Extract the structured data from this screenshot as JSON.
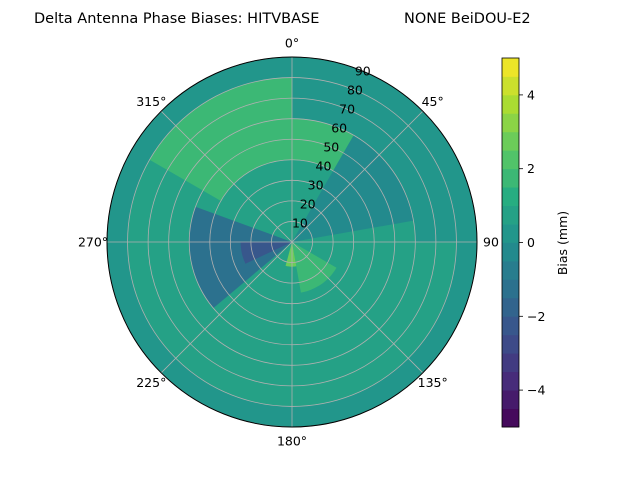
{
  "chart_data": {
    "type": "polar_contour",
    "title_left": "Delta Antenna Phase Biases: HITVBASE",
    "title_right": "NONE BeiDOU-E2",
    "theta_direction": "clockwise",
    "theta_zero": "N",
    "angle_ticks": [
      {
        "deg": 0,
        "label": "0°"
      },
      {
        "deg": 45,
        "label": "45°"
      },
      {
        "deg": 90,
        "label": "90"
      },
      {
        "deg": 135,
        "label": "135°"
      },
      {
        "deg": 180,
        "label": "180°"
      },
      {
        "deg": 225,
        "label": "225°"
      },
      {
        "deg": 270,
        "label": "270°"
      },
      {
        "deg": 315,
        "label": "315°"
      }
    ],
    "radial_ticks": [
      {
        "value": 10,
        "label": "10"
      },
      {
        "value": 20,
        "label": "20"
      },
      {
        "value": 30,
        "label": "30"
      },
      {
        "value": 40,
        "label": "40"
      },
      {
        "value": 50,
        "label": "50"
      },
      {
        "value": 60,
        "label": "60"
      },
      {
        "value": 70,
        "label": "70"
      },
      {
        "value": 80,
        "label": "80"
      },
      {
        "value": 90,
        "label": "90"
      }
    ],
    "rlim": [
      0,
      90
    ],
    "grid": true,
    "colorbar": {
      "label": "Bias (mm)",
      "range": [
        -5,
        5
      ],
      "levels": [
        -5,
        -4.5,
        -4,
        -3.5,
        -3,
        -2.5,
        -2,
        -1.5,
        -1,
        -0.5,
        0,
        0.5,
        1,
        1.5,
        2,
        2.5,
        3,
        3.5,
        4,
        4.5,
        5
      ],
      "tick_values": [
        -4,
        -2,
        0,
        2,
        4
      ],
      "tick_labels": [
        "−4",
        "−2",
        "0",
        "2",
        "4"
      ]
    },
    "field_bands": [
      {
        "az": [
          300,
          30
        ],
        "el": [
          40,
          90
        ],
        "bias_mm": 1.5
      },
      {
        "az": [
          30,
          80
        ],
        "el": [
          0,
          60
        ],
        "bias_mm": -0.5
      },
      {
        "az": [
          0,
          90
        ],
        "el": [
          60,
          90
        ],
        "bias_mm": 0
      },
      {
        "az": [
          90,
          150
        ],
        "el": [
          0,
          60
        ],
        "bias_mm": 0.5
      },
      {
        "az": [
          120,
          170
        ],
        "el": [
          0,
          25
        ],
        "bias_mm": 1.5
      },
      {
        "az": [
          170,
          195
        ],
        "el": [
          0,
          12
        ],
        "bias_mm": 2.5
      },
      {
        "az": [
          230,
          290
        ],
        "el": [
          0,
          50
        ],
        "bias_mm": -1.5
      },
      {
        "az": [
          245,
          270
        ],
        "el": [
          0,
          25
        ],
        "bias_mm": -2.5
      },
      {
        "az": [
          0,
          360
        ],
        "el": [
          80,
          90
        ],
        "bias_mm": 0
      }
    ]
  }
}
